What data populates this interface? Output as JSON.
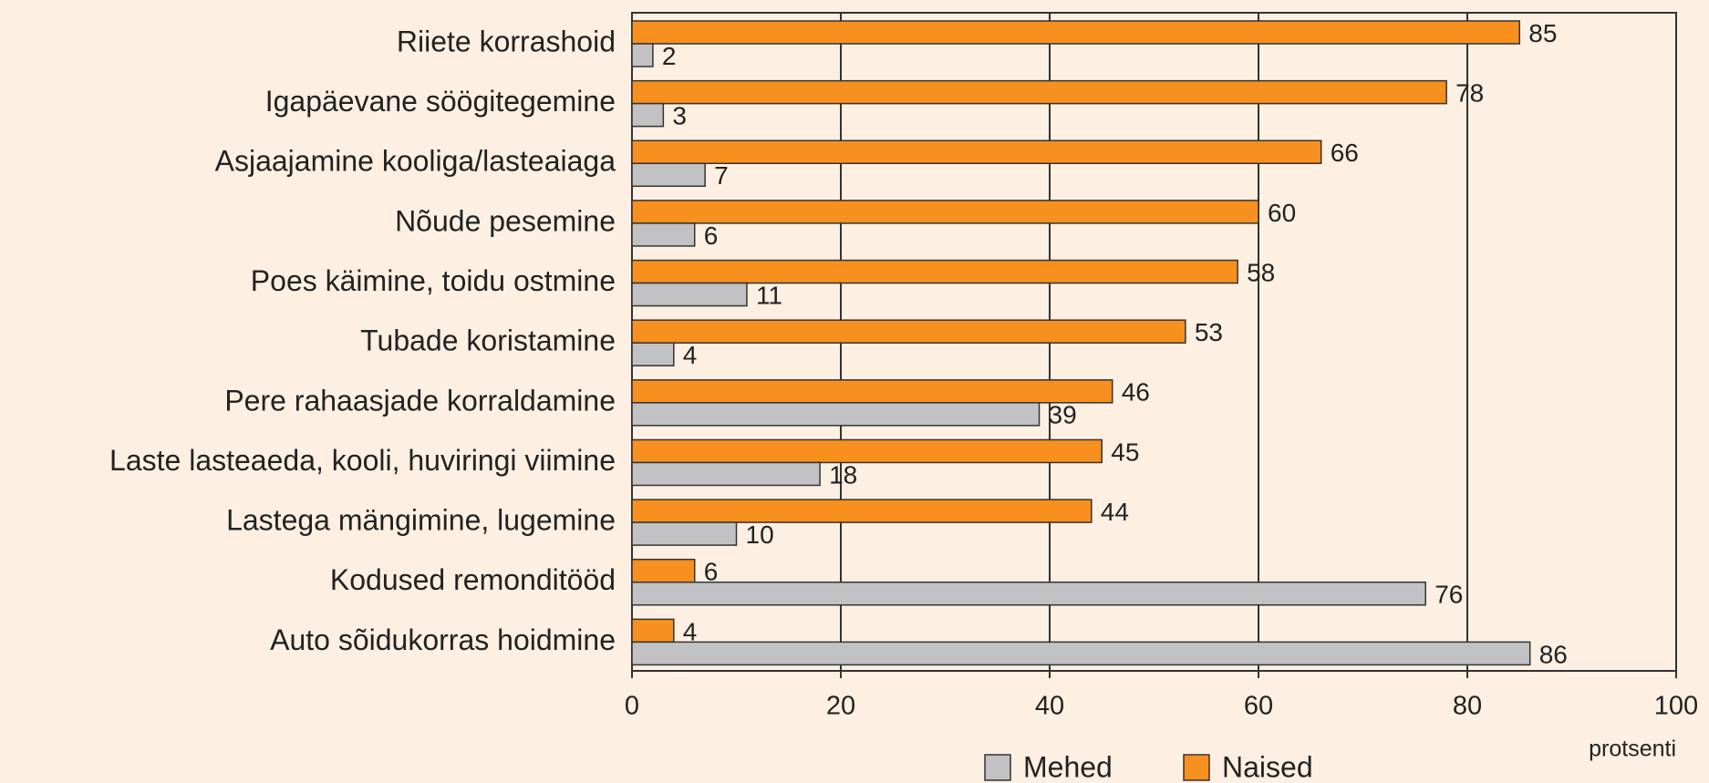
{
  "chart_data": {
    "type": "hbar",
    "categories": [
      "Riiete korrashoid",
      "Igapäevane söögitegemine",
      "Asjaajamine kooliga/lasteaiaga",
      "Nõude pesemine",
      "Poes käimine, toidu ostmine",
      "Tubade koristamine",
      "Pere rahaasjade korraldamine",
      "Laste lasteaeda, kooli, huviringi viimine",
      "Lastega mängimine, lugemine",
      "Kodused remonditööd",
      "Auto sõidukorras hoidmine"
    ],
    "series": [
      {
        "name": "Mehed",
        "color": "#c2c2c4",
        "values": [
          2,
          3,
          7,
          6,
          11,
          4,
          39,
          18,
          10,
          76,
          86
        ]
      },
      {
        "name": "Naised",
        "color": "#f7901e",
        "values": [
          85,
          78,
          66,
          60,
          58,
          53,
          46,
          45,
          44,
          6,
          4
        ]
      }
    ],
    "xlim": [
      0,
      100
    ],
    "xticks": [
      0,
      20,
      40,
      60,
      80,
      100
    ],
    "xlabel": "protsenti",
    "grid": true
  }
}
